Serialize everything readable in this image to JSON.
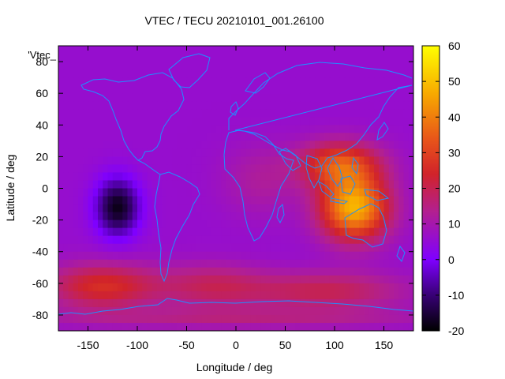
{
  "chart_data": {
    "type": "heatmap",
    "title": "VTEC / TECU 20210101_001.26100",
    "xlabel": "Longitude / deg",
    "ylabel": "Latitude / deg",
    "xlim": [
      -180,
      180
    ],
    "ylim": [
      -90,
      90
    ],
    "xticks": [
      -150,
      -100,
      -50,
      0,
      50,
      100,
      150
    ],
    "yticks": [
      -80,
      -60,
      -40,
      -20,
      0,
      20,
      40,
      60,
      80
    ],
    "legend_key": "'Vtec_",
    "colorbar": {
      "range": [
        -20,
        60
      ],
      "ticks": [
        -20,
        -10,
        0,
        10,
        20,
        30,
        40,
        50,
        60
      ],
      "palette": [
        "#000000",
        "#3a007a",
        "#7f00ff",
        "#b3208f",
        "#d1232a",
        "#e8541a",
        "#f7a800",
        "#ffff00"
      ]
    },
    "background_value": 6,
    "features": [
      {
        "name": "equatorial-asia-maximum",
        "lon": 120,
        "lat": -12,
        "value": 48,
        "sx": 34,
        "sy": 20
      },
      {
        "name": "indonesia-crest",
        "lon": 105,
        "lat": 15,
        "value": 32,
        "sx": 40,
        "sy": 14
      },
      {
        "name": "africa-crest",
        "lon": 25,
        "lat": 5,
        "value": 12,
        "sx": 38,
        "sy": 22
      },
      {
        "name": "southern-pacific-high",
        "lon": -135,
        "lat": -62,
        "value": 26,
        "sx": 55,
        "sy": 14
      },
      {
        "name": "south-atlantic-high",
        "lon": -25,
        "lat": -62,
        "value": 18,
        "sx": 55,
        "sy": 14
      },
      {
        "name": "southern-indian-high",
        "lon": 90,
        "lat": -65,
        "value": 20,
        "sx": 80,
        "sy": 12
      },
      {
        "name": "antarctic-band",
        "lon": 0,
        "lat": -82,
        "value": 14,
        "sx": 200,
        "sy": 6
      },
      {
        "name": "pacific-minimum",
        "lon": -120,
        "lat": -12,
        "value": -18,
        "sx": 22,
        "sy": 18
      }
    ]
  },
  "colors": {
    "coastline": "#1e90ff",
    "axis": "#000000"
  }
}
